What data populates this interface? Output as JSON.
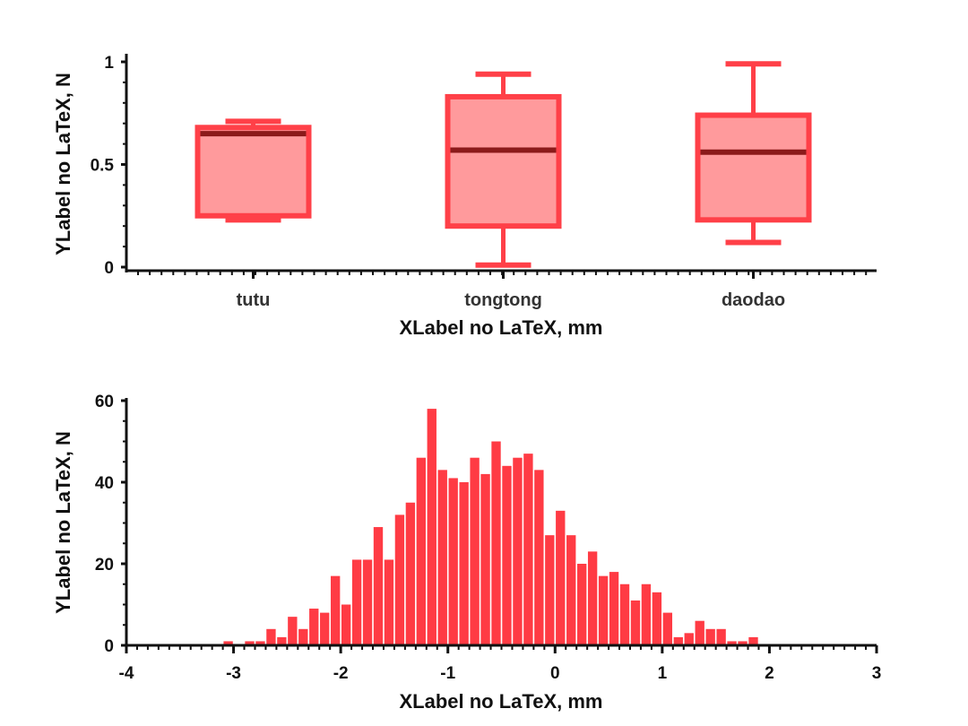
{
  "chart_data": [
    {
      "type": "box",
      "xlabel": "XLabel no LaTeX, mm",
      "ylabel": "YLabel no LaTeX, N",
      "ylim": [
        0,
        1
      ],
      "yticks": [
        "0",
        "0.5",
        "1"
      ],
      "categories": [
        "tutu",
        "tongtong",
        "daodao"
      ],
      "boxes": [
        {
          "whisker_low": 0.23,
          "q1": 0.25,
          "median": 0.65,
          "q3": 0.68,
          "whisker_high": 0.71
        },
        {
          "whisker_low": 0.01,
          "q1": 0.2,
          "median": 0.57,
          "q3": 0.83,
          "whisker_high": 0.94
        },
        {
          "whisker_low": 0.12,
          "q1": 0.23,
          "median": 0.56,
          "q3": 0.74,
          "whisker_high": 0.99
        }
      ],
      "colors": {
        "edge": "#ff4048",
        "fill": "#ff9a9c",
        "median": "#8b1a1a"
      }
    },
    {
      "type": "bar",
      "xlabel": "XLabel no LaTeX, mm",
      "ylabel": "YLabel no LaTeX, N",
      "xlim": [
        -4,
        3
      ],
      "ylim": [
        0,
        60
      ],
      "xticks": [
        "-4",
        "-3",
        "-2",
        "-1",
        "0",
        "1",
        "2",
        "3"
      ],
      "yticks": [
        "0",
        "20",
        "40",
        "60"
      ],
      "bin_width": 0.1,
      "bin_start": -3.1,
      "values": [
        1,
        0,
        1,
        1,
        4,
        2,
        7,
        4,
        9,
        8,
        17,
        10,
        21,
        21,
        29,
        21,
        32,
        35,
        46,
        58,
        43,
        41,
        40,
        46,
        42,
        50,
        44,
        46,
        47,
        43,
        27,
        33,
        27,
        20,
        23,
        17,
        18,
        15,
        11,
        15,
        13,
        8,
        2,
        3,
        6,
        4,
        4,
        1,
        1,
        2
      ],
      "colors": {
        "bar": "#ff3b44"
      }
    }
  ]
}
